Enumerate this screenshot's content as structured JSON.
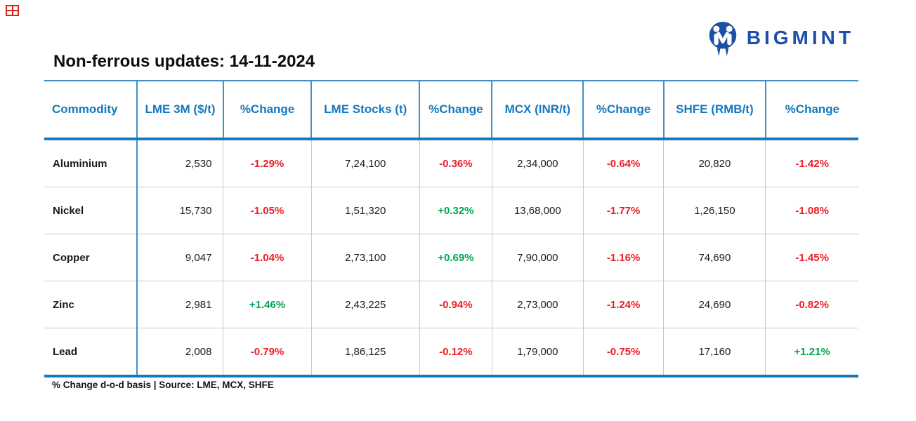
{
  "title": "Non-ferrous updates: 14-11-2024",
  "brand": {
    "name": "BIGMINT",
    "logo_icon": "bigmint-monogram-icon",
    "color": "#1D4FA8"
  },
  "corner_mark_icon": "red-grid-mark-icon",
  "chart_data": {
    "type": "table",
    "title": "Non-ferrous updates: 14-11-2024",
    "columns": [
      "Commodity",
      "LME 3M ($/t)",
      "%Change",
      "LME Stocks (t)",
      "%Change",
      "MCX (INR/t)",
      "%Change",
      "SHFE (RMB/t)",
      "%Change"
    ],
    "rows": [
      [
        "Aluminium",
        "2,530",
        "-1.29%",
        "7,24,100",
        "-0.36%",
        "2,34,000",
        "-0.64%",
        "20,820",
        "-1.42%"
      ],
      [
        "Nickel",
        "15,730",
        "-1.05%",
        "1,51,320",
        "+0.32%",
        "13,68,000",
        "-1.77%",
        "1,26,150",
        "-1.08%"
      ],
      [
        "Copper",
        "9,047",
        "-1.04%",
        "2,73,100",
        "+0.69%",
        "7,90,000",
        "-1.16%",
        "74,690",
        "-1.45%"
      ],
      [
        "Zinc",
        "2,981",
        "+1.46%",
        "2,43,225",
        "-0.94%",
        "2,73,000",
        "-1.24%",
        "24,690",
        "-0.82%"
      ],
      [
        "Lead",
        "2,008",
        "-0.79%",
        "1,86,125",
        "-0.12%",
        "1,79,000",
        "-0.75%",
        "17,160",
        "+1.21%"
      ]
    ],
    "notes": "% Change d-o-d basis | Source: LME, MCX, SHFE",
    "colors": {
      "positive": "#00A651",
      "negative": "#EE1C25",
      "header_text": "#1678BE",
      "grid_blue": "#4090C8"
    }
  },
  "footer_note": "% Change d-o-d basis | Source: LME, MCX, SHFE"
}
